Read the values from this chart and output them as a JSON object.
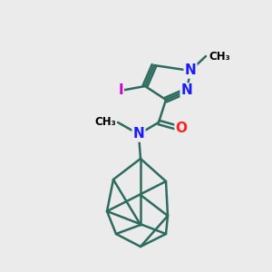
{
  "bg_color": "#ebebeb",
  "bond_color": "#2d6b5e",
  "bond_width": 1.8,
  "atom_colors": {
    "N": "#1a1aff",
    "O": "#ff2020",
    "I": "#cc00cc",
    "C": "#000000"
  }
}
